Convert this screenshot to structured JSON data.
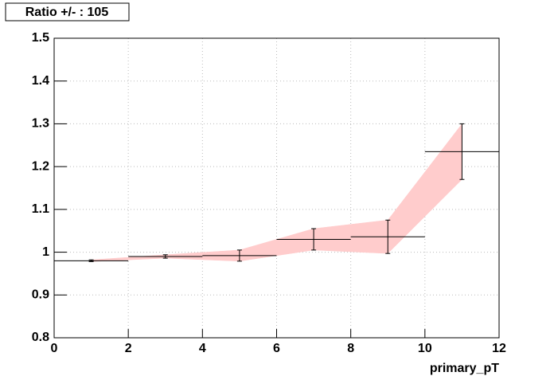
{
  "chart_data": {
    "type": "errorbar",
    "title": "Ratio +/- : 105",
    "x_label": "primary_pT",
    "x": [
      1,
      3,
      5,
      7,
      9,
      11
    ],
    "x_errors": [
      1,
      1,
      1,
      1,
      1,
      1
    ],
    "values": [
      0.98,
      0.99,
      0.992,
      1.03,
      1.036,
      1.235
    ],
    "errors": [
      0.002,
      0.004,
      0.013,
      0.025,
      0.039,
      0.065
    ],
    "color": "#000000",
    "band_color": "#ffcccc",
    "xlim": [
      0,
      12
    ],
    "xticks": [
      0,
      2,
      4,
      6,
      8,
      10,
      12
    ],
    "ylim": [
      0.8,
      1.5
    ],
    "yticks": [
      0.8,
      0.9,
      1,
      1.1,
      1.2,
      1.3,
      1.4,
      1.5
    ],
    "grid": true
  }
}
